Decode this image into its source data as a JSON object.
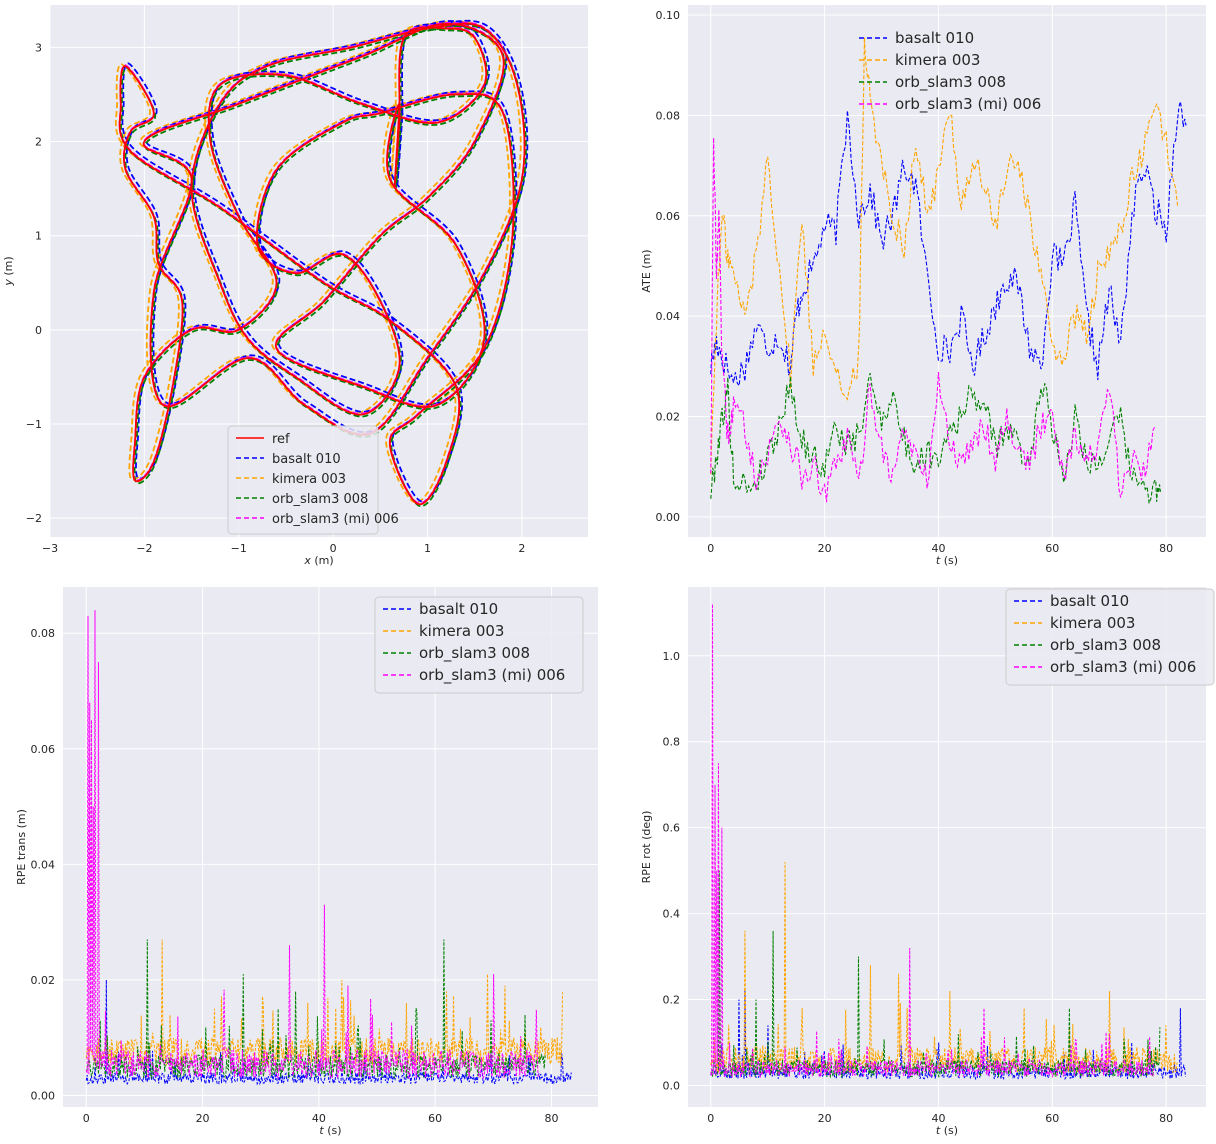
{
  "colors": {
    "ref": "#ff0000",
    "basalt": "#0000ff",
    "kimera": "#ffa500",
    "orb": "#008000",
    "orbmi": "#ff00ff",
    "panel_bg": "#eaeaf2",
    "grid": "#ffffff"
  },
  "chart_data": [
    {
      "type": "line",
      "kind": "trajectory",
      "xlabel": "x (m)",
      "ylabel": "y (m)",
      "xlim": [
        -3,
        2.7
      ],
      "ylim": [
        -2.2,
        3.45
      ],
      "xticks": [
        -3,
        -2,
        -1,
        0,
        1,
        2
      ],
      "yticks": [
        -2,
        -1,
        0,
        1,
        2,
        3
      ],
      "grid": true,
      "legend_position": "lower-center",
      "series": [
        {
          "name": "ref",
          "style": "solid",
          "color": "#ff0000"
        },
        {
          "name": "basalt 010",
          "style": "dashed",
          "color": "#0000ff"
        },
        {
          "name": "kimera 003",
          "style": "dashed",
          "color": "#ffa500"
        },
        {
          "name": "orb_slam3 008",
          "style": "dashed",
          "color": "#008000"
        },
        {
          "name": "orb_slam3 (mi) 006",
          "style": "dashed",
          "color": "#ff00ff"
        }
      ],
      "path": [
        [
          0.65,
          1.5
        ],
        [
          0.7,
          2.2
        ],
        [
          0.75,
          3.1
        ],
        [
          1.2,
          3.2
        ],
        [
          1.5,
          3.1
        ],
        [
          1.6,
          2.6
        ],
        [
          1.1,
          2.2
        ],
        [
          0.3,
          2.4
        ],
        [
          -0.5,
          2.7
        ],
        [
          -1.2,
          2.6
        ],
        [
          -1.3,
          2.0
        ],
        [
          -1.0,
          1.2
        ],
        [
          -0.6,
          0.5
        ],
        [
          -1.0,
          0.0
        ],
        [
          -1.5,
          0.0
        ],
        [
          -2.0,
          -0.5
        ],
        [
          -2.1,
          -1.2
        ],
        [
          -2.1,
          -1.6
        ],
        [
          -1.9,
          -1.4
        ],
        [
          -1.7,
          -0.6
        ],
        [
          -1.6,
          0.3
        ],
        [
          -1.85,
          0.7
        ],
        [
          -1.9,
          1.2
        ],
        [
          -2.2,
          1.7
        ],
        [
          -2.15,
          2.1
        ],
        [
          -1.9,
          2.3
        ],
        [
          -2.2,
          2.8
        ],
        [
          -2.25,
          2.4
        ],
        [
          -2.15,
          1.9
        ],
        [
          -1.2,
          1.3
        ],
        [
          -0.1,
          0.5
        ],
        [
          0.6,
          0.1
        ],
        [
          1.3,
          -0.6
        ],
        [
          1.2,
          -1.4
        ],
        [
          0.9,
          -1.85
        ],
        [
          0.6,
          -1.2
        ],
        [
          0.9,
          -0.9
        ],
        [
          1.6,
          -0.2
        ],
        [
          1.9,
          1.0
        ],
        [
          1.8,
          2.3
        ],
        [
          1.3,
          2.5
        ],
        [
          0.5,
          2.3
        ],
        [
          0.1,
          2.2
        ],
        [
          -0.6,
          1.7
        ],
        [
          -0.8,
          0.9
        ],
        [
          -0.4,
          0.6
        ],
        [
          0.1,
          0.8
        ],
        [
          0.5,
          0.3
        ],
        [
          0.7,
          -0.4
        ],
        [
          0.3,
          -0.9
        ],
        [
          -0.4,
          -0.5
        ],
        [
          -0.9,
          -0.1
        ],
        [
          -1.2,
          0.5
        ],
        [
          -1.5,
          1.5
        ],
        [
          -1.2,
          2.4
        ],
        [
          -0.7,
          2.8
        ],
        [
          0.2,
          3.0
        ],
        [
          1.0,
          3.2
        ],
        [
          1.6,
          3.2
        ],
        [
          1.95,
          2.6
        ],
        [
          2.0,
          1.6
        ],
        [
          1.6,
          0.6
        ],
        [
          1.0,
          -0.3
        ],
        [
          0.4,
          -1.1
        ],
        [
          -0.3,
          -0.8
        ],
        [
          -0.9,
          -0.3
        ],
        [
          -1.8,
          -0.8
        ],
        [
          -1.9,
          0.4
        ],
        [
          -1.5,
          1.6
        ],
        [
          -2.0,
          2.0
        ],
        [
          -1.0,
          2.4
        ],
        [
          0.3,
          2.9
        ],
        [
          1.2,
          3.25
        ],
        [
          1.8,
          2.9
        ],
        [
          1.5,
          2.0
        ],
        [
          1.0,
          1.4
        ],
        [
          0.5,
          1.0
        ],
        [
          -0.1,
          0.3
        ],
        [
          -0.6,
          -0.2
        ],
        [
          0.3,
          -0.6
        ],
        [
          1.1,
          -0.8
        ],
        [
          1.6,
          -0.1
        ],
        [
          1.3,
          0.9
        ],
        [
          0.6,
          1.6
        ],
        [
          0.7,
          2.4
        ],
        [
          0.65,
          1.5
        ]
      ]
    },
    {
      "type": "line",
      "xlabel": "t (s)",
      "ylabel": "ATE (m)",
      "xlim": [
        -4,
        87
      ],
      "ylim": [
        -0.004,
        0.102
      ],
      "xticks": [
        0,
        20,
        40,
        60,
        80
      ],
      "yticks": [
        0.0,
        0.02,
        0.04,
        0.06,
        0.08,
        0.1
      ],
      "ytick_labels": [
        "0.00",
        "0.02",
        "0.04",
        "0.06",
        "0.08",
        "0.10"
      ],
      "grid": true,
      "legend_position": "top-center",
      "series": [
        {
          "name": "basalt 010",
          "color": "#0000ff",
          "t_end": 83.5,
          "x": [
            0,
            1,
            2,
            4,
            6,
            8,
            10,
            12,
            14,
            15,
            16,
            18,
            20,
            22,
            24,
            26,
            28,
            30,
            32,
            34,
            36,
            38,
            40,
            42,
            44,
            46,
            48,
            50,
            52,
            54,
            56,
            58,
            60,
            62,
            64,
            66,
            68,
            70,
            72,
            74,
            76,
            78,
            80,
            82,
            83.5
          ],
          "values": [
            0.03,
            0.035,
            0.032,
            0.027,
            0.03,
            0.038,
            0.034,
            0.036,
            0.03,
            0.04,
            0.045,
            0.05,
            0.058,
            0.057,
            0.08,
            0.06,
            0.065,
            0.055,
            0.06,
            0.07,
            0.066,
            0.048,
            0.034,
            0.033,
            0.04,
            0.03,
            0.036,
            0.042,
            0.048,
            0.046,
            0.034,
            0.03,
            0.052,
            0.05,
            0.062,
            0.04,
            0.03,
            0.045,
            0.034,
            0.06,
            0.07,
            0.062,
            0.057,
            0.082,
            0.078
          ]
        },
        {
          "name": "kimera 003",
          "color": "#ffa500",
          "t_end": 82,
          "x": [
            0,
            1,
            2,
            3,
            4,
            6,
            8,
            10,
            12,
            14,
            16,
            18,
            20,
            22,
            24,
            26,
            27,
            28,
            30,
            32,
            34,
            36,
            38,
            40,
            42,
            44,
            46,
            48,
            50,
            52,
            54,
            56,
            58,
            60,
            62,
            64,
            66,
            68,
            70,
            72,
            74,
            76,
            78,
            80,
            82
          ],
          "values": [
            0.01,
            0.04,
            0.06,
            0.052,
            0.048,
            0.04,
            0.052,
            0.072,
            0.05,
            0.028,
            0.06,
            0.03,
            0.038,
            0.03,
            0.022,
            0.032,
            0.094,
            0.085,
            0.07,
            0.06,
            0.054,
            0.075,
            0.06,
            0.068,
            0.082,
            0.062,
            0.071,
            0.066,
            0.058,
            0.068,
            0.072,
            0.06,
            0.048,
            0.034,
            0.032,
            0.04,
            0.036,
            0.048,
            0.052,
            0.058,
            0.067,
            0.072,
            0.084,
            0.074,
            0.062
          ]
        },
        {
          "name": "orb_slam3 008",
          "color": "#008000",
          "t_end": 79,
          "x": [
            0,
            1,
            2,
            3,
            4,
            6,
            8,
            10,
            12,
            14,
            16,
            18,
            20,
            22,
            24,
            26,
            28,
            30,
            32,
            34,
            36,
            38,
            40,
            42,
            44,
            46,
            48,
            50,
            52,
            54,
            56,
            58,
            60,
            62,
            64,
            66,
            68,
            70,
            72,
            74,
            76,
            78,
            79
          ],
          "values": [
            0.005,
            0.012,
            0.02,
            0.025,
            0.008,
            0.006,
            0.007,
            0.012,
            0.018,
            0.027,
            0.015,
            0.012,
            0.01,
            0.018,
            0.014,
            0.016,
            0.027,
            0.02,
            0.024,
            0.015,
            0.01,
            0.013,
            0.012,
            0.018,
            0.02,
            0.025,
            0.022,
            0.014,
            0.018,
            0.014,
            0.01,
            0.028,
            0.018,
            0.008,
            0.02,
            0.012,
            0.01,
            0.016,
            0.019,
            0.008,
            0.006,
            0.005,
            0.005
          ]
        },
        {
          "name": "orb_slam3 (mi) 006",
          "color": "#ff00ff",
          "t_end": 78,
          "x": [
            0,
            0.5,
            1,
            1.5,
            2,
            3,
            4,
            6,
            8,
            10,
            12,
            14,
            16,
            18,
            20,
            22,
            24,
            26,
            28,
            30,
            32,
            34,
            36,
            38,
            40,
            42,
            44,
            46,
            48,
            50,
            52,
            54,
            56,
            58,
            60,
            62,
            64,
            66,
            68,
            70,
            72,
            74,
            76,
            78
          ],
          "values": [
            0.01,
            0.074,
            0.05,
            0.06,
            0.03,
            0.016,
            0.022,
            0.018,
            0.008,
            0.012,
            0.02,
            0.015,
            0.008,
            0.01,
            0.004,
            0.01,
            0.016,
            0.006,
            0.026,
            0.014,
            0.008,
            0.018,
            0.012,
            0.007,
            0.027,
            0.015,
            0.01,
            0.016,
            0.018,
            0.012,
            0.02,
            0.014,
            0.01,
            0.018,
            0.022,
            0.008,
            0.017,
            0.011,
            0.014,
            0.026,
            0.004,
            0.012,
            0.008,
            0.018
          ]
        }
      ]
    },
    {
      "type": "line",
      "xlabel": "t (s)",
      "ylabel": "RPE trans (m)",
      "xlim": [
        -4,
        88
      ],
      "ylim": [
        -0.002,
        0.088
      ],
      "xticks": [
        0,
        20,
        40,
        60,
        80
      ],
      "yticks": [
        0.0,
        0.02,
        0.04,
        0.06,
        0.08
      ],
      "ytick_labels": [
        "0.00",
        "0.02",
        "0.04",
        "0.06",
        "0.08"
      ],
      "grid": true,
      "legend_position": "top-right",
      "series": [
        {
          "name": "basalt 010",
          "color": "#0000ff",
          "t_end": 83.5,
          "base": 0.002,
          "noise": 0.002,
          "peaks": [
            [
              3.5,
              0.02
            ],
            [
              11,
              0.008
            ],
            [
              40,
              0.006
            ]
          ]
        },
        {
          "name": "kimera 003",
          "color": "#ffa500",
          "t_end": 82,
          "base": 0.005,
          "noise": 0.005,
          "peaks": [
            [
              13,
              0.027
            ],
            [
              22,
              0.015
            ],
            [
              44,
              0.02
            ],
            [
              55,
              0.016
            ],
            [
              62,
              0.018
            ],
            [
              69,
              0.021
            ],
            [
              72,
              0.019
            ],
            [
              80,
              0.006
            ]
          ]
        },
        {
          "name": "orb_slam3 008",
          "color": "#008000",
          "t_end": 79,
          "base": 0.003,
          "noise": 0.004,
          "peaks": [
            [
              10.5,
              0.027
            ],
            [
              27,
              0.021
            ],
            [
              36,
              0.018
            ],
            [
              61.5,
              0.027
            ],
            [
              33,
              0.015
            ]
          ]
        },
        {
          "name": "orb_slam3 (mi) 006",
          "color": "#ff00ff",
          "t_end": 78,
          "base": 0.003,
          "noise": 0.005,
          "peaks": [
            [
              0.3,
              0.083
            ],
            [
              0.9,
              0.065
            ],
            [
              1.5,
              0.084
            ],
            [
              2.1,
              0.075
            ],
            [
              1.2,
              0.05
            ],
            [
              0.6,
              0.068
            ],
            [
              41,
              0.033
            ],
            [
              35,
              0.026
            ],
            [
              45,
              0.019
            ],
            [
              70,
              0.021
            ]
          ]
        }
      ]
    },
    {
      "type": "line",
      "xlabel": "t (s)",
      "ylabel": "RPE rot (deg)",
      "xlim": [
        -4,
        87
      ],
      "ylim": [
        -0.05,
        1.16
      ],
      "xticks": [
        0,
        20,
        40,
        60,
        80
      ],
      "yticks": [
        0.0,
        0.2,
        0.4,
        0.6,
        0.8,
        1.0
      ],
      "ytick_labels": [
        "0.0",
        "0.2",
        "0.4",
        "0.6",
        "0.8",
        "1.0"
      ],
      "grid": true,
      "legend_position": "top-right",
      "series": [
        {
          "name": "basalt 010",
          "color": "#0000ff",
          "t_end": 83.5,
          "base": 0.015,
          "noise": 0.03,
          "peaks": [
            [
              5,
              0.2
            ],
            [
              6,
              0.22
            ],
            [
              10,
              0.14
            ],
            [
              40,
              0.1
            ],
            [
              82.5,
              0.18
            ]
          ]
        },
        {
          "name": "kimera 003",
          "color": "#ffa500",
          "t_end": 82,
          "base": 0.03,
          "noise": 0.06,
          "peaks": [
            [
              6,
              0.36
            ],
            [
              13,
              0.52
            ],
            [
              28,
              0.28
            ],
            [
              33,
              0.26
            ],
            [
              42,
              0.22
            ],
            [
              55,
              0.18
            ],
            [
              70,
              0.22
            ],
            [
              80,
              0.14
            ]
          ]
        },
        {
          "name": "orb_slam3 008",
          "color": "#008000",
          "t_end": 79,
          "base": 0.02,
          "noise": 0.04,
          "peaks": [
            [
              1.5,
              0.5
            ],
            [
              11,
              0.36
            ],
            [
              26,
              0.3
            ],
            [
              63,
              0.18
            ],
            [
              8,
              0.2
            ]
          ]
        },
        {
          "name": "orb_slam3 (mi) 006",
          "color": "#ff00ff",
          "t_end": 78,
          "base": 0.02,
          "noise": 0.04,
          "peaks": [
            [
              0.3,
              1.12
            ],
            [
              0.8,
              0.7
            ],
            [
              1.4,
              0.75
            ],
            [
              2.0,
              0.6
            ],
            [
              1.1,
              0.5
            ],
            [
              35,
              0.32
            ],
            [
              48,
              0.18
            ],
            [
              70,
              0.12
            ]
          ]
        }
      ]
    }
  ]
}
